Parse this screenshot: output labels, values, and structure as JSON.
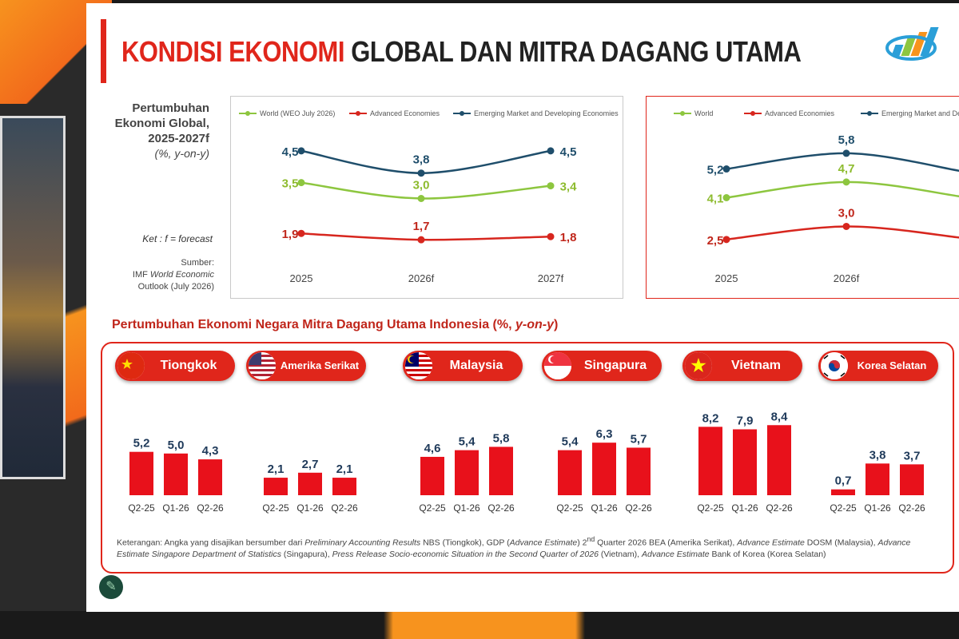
{
  "title": {
    "red": "KONDISI EKONOMI",
    "dark": "GLOBAL DAN MITRA DAGANG UTAMA"
  },
  "side_label": {
    "line1": "Pertumbuhan",
    "line2": "Ekonomi Global,",
    "line3": "2025-2027f",
    "line4": "(%, y-on-y)"
  },
  "ket": "Ket : f = forecast",
  "sumber": {
    "line1": "Sumber:",
    "line2a": "IMF ",
    "line2b": "World Economic",
    "line3": "Outlook (July 2026)"
  },
  "section_title": {
    "main": "Pertumbuhan Ekonomi Negara Mitra Dagang Utama Indonesia (%, ",
    "italic": "y-on-y",
    "end": ")"
  },
  "colors": {
    "accent": "#e0261b",
    "world": "#8dc63f",
    "advanced": "#d7261e",
    "emerging": "#1f4e6b",
    "bar": "#e8111b"
  },
  "note": {
    "p1": "Keterangan: Angka yang disajikan bersumber dari ",
    "p2": "Preliminary Accounting Results",
    "p3": " NBS (Tiongkok), GDP (",
    "p4": "Advance Estimate",
    "p5": ") 2",
    "p5sup": "nd",
    "p6": " Quarter 2026 BEA (Amerika Serikat), ",
    "p7": "Advance Estimate",
    "p8": " DOSM (Malaysia), ",
    "p9": "Advance Estimate Singapore Department of Statistics",
    "p10": " (Singapura), ",
    "p11": "Press Release Socio-economic Situation in the Second Quarter of 2026",
    "p12": " (Vietnam), ",
    "p13": "Advance Estimate",
    "p14": " Bank of Korea (Korea Selatan)"
  },
  "chart_data": [
    {
      "type": "line",
      "x": [
        "2025",
        "2026f",
        "2027f"
      ],
      "series": [
        {
          "name": "World (WEO July 2026)",
          "values": [
            3.5,
            3.0,
            3.4
          ],
          "labels": [
            "3,5",
            "3,0",
            "3,4"
          ]
        },
        {
          "name": "Advanced Economies",
          "values": [
            1.9,
            1.7,
            1.8
          ],
          "labels": [
            "1,9",
            "1,7",
            "1,8"
          ]
        },
        {
          "name": "Emerging Market and Developing Economies",
          "values": [
            4.5,
            3.8,
            4.5
          ],
          "labels": [
            "4,5",
            "3,8",
            "4,5"
          ]
        }
      ],
      "ylim": [
        1,
        5
      ]
    },
    {
      "type": "line",
      "x": [
        "2025",
        "2026f"
      ],
      "series": [
        {
          "name": "World",
          "values": [
            4.1,
            4.7
          ],
          "labels": [
            "4,1",
            "4,7"
          ]
        },
        {
          "name": "Advanced Economies",
          "values": [
            2.5,
            3.0
          ],
          "labels": [
            "2,5",
            "3,0"
          ]
        },
        {
          "name": "Emerging Market and Developing Economies",
          "values": [
            5.2,
            5.8
          ],
          "labels": [
            "5,2",
            "5,8"
          ]
        }
      ],
      "ylim": [
        1.7,
        6.5
      ]
    },
    {
      "type": "bar",
      "categories": [
        "Q2-25",
        "Q1-26",
        "Q2-26"
      ],
      "ylim": [
        0,
        9
      ],
      "countries": [
        {
          "name": "Tiongkok",
          "flag": "china-flag-icon",
          "values": [
            5.2,
            5.0,
            4.3
          ],
          "labels": [
            "5,2",
            "5,0",
            "4,3"
          ]
        },
        {
          "name": "Amerika Serikat",
          "flag": "usa-flag-icon",
          "values": [
            2.1,
            2.7,
            2.1
          ],
          "labels": [
            "2,1",
            "2,7",
            "2,1"
          ]
        },
        {
          "name": "Malaysia",
          "flag": "malaysia-flag-icon",
          "values": [
            4.6,
            5.4,
            5.8
          ],
          "labels": [
            "4,6",
            "5,4",
            "5,8"
          ]
        },
        {
          "name": "Singapura",
          "flag": "singapore-flag-icon",
          "values": [
            5.4,
            6.3,
            5.7
          ],
          "labels": [
            "5,4",
            "6,3",
            "5,7"
          ]
        },
        {
          "name": "Vietnam",
          "flag": "vietnam-flag-icon",
          "values": [
            8.2,
            7.9,
            8.4
          ],
          "labels": [
            "8,2",
            "7,9",
            "8,4"
          ]
        },
        {
          "name": "Korea Selatan",
          "flag": "korea-flag-icon",
          "values": [
            0.7,
            3.8,
            3.7
          ],
          "labels": [
            "0,7",
            "3,8",
            "3,7"
          ]
        }
      ]
    }
  ]
}
